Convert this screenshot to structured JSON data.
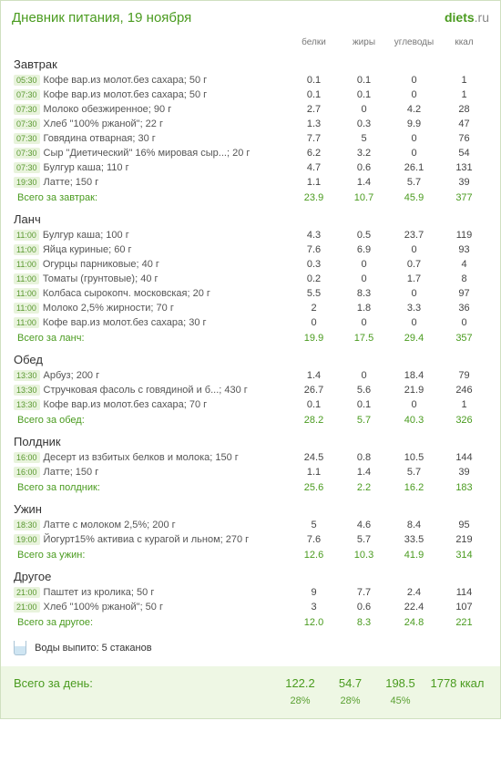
{
  "title": "Дневник питания, 19 ноября",
  "brand_main": "diets",
  "brand_suffix": ".ru",
  "columns": {
    "protein": "белки",
    "fat": "жиры",
    "carbs": "углеводы",
    "kcal": "ккал"
  },
  "meals": [
    {
      "name": "Завтрак",
      "items": [
        {
          "time": "05:30",
          "food": "Кофе вар.из молот.без сахара; 50 г",
          "p": "0.1",
          "f": "0.1",
          "c": "0",
          "k": "1"
        },
        {
          "time": "07:30",
          "food": "Кофе вар.из молот.без сахара; 50 г",
          "p": "0.1",
          "f": "0.1",
          "c": "0",
          "k": "1"
        },
        {
          "time": "07:30",
          "food": "Молоко обезжиренное; 90 г",
          "p": "2.7",
          "f": "0",
          "c": "4.2",
          "k": "28"
        },
        {
          "time": "07:30",
          "food": "Хлеб \"100% ржаной\"; 22 г",
          "p": "1.3",
          "f": "0.3",
          "c": "9.9",
          "k": "47"
        },
        {
          "time": "07:30",
          "food": "Говядина отварная; 30 г",
          "p": "7.7",
          "f": "5",
          "c": "0",
          "k": "76"
        },
        {
          "time": "07:30",
          "food": "Сыр \"Диетический\" 16% мировая сыр...; 20 г",
          "p": "6.2",
          "f": "3.2",
          "c": "0",
          "k": "54"
        },
        {
          "time": "07:30",
          "food": "Булгур каша; 110 г",
          "p": "4.7",
          "f": "0.6",
          "c": "26.1",
          "k": "131"
        },
        {
          "time": "19:30",
          "food": "Латте; 150 г",
          "p": "1.1",
          "f": "1.4",
          "c": "5.7",
          "k": "39"
        }
      ],
      "subtotal_label": "Всего за завтрак:",
      "subtotal": {
        "p": "23.9",
        "f": "10.7",
        "c": "45.9",
        "k": "377"
      }
    },
    {
      "name": "Ланч",
      "items": [
        {
          "time": "11:00",
          "food": "Булгур каша; 100 г",
          "p": "4.3",
          "f": "0.5",
          "c": "23.7",
          "k": "119"
        },
        {
          "time": "11:00",
          "food": "Яйца куриные; 60 г",
          "p": "7.6",
          "f": "6.9",
          "c": "0",
          "k": "93"
        },
        {
          "time": "11:00",
          "food": "Огурцы парниковые; 40 г",
          "p": "0.3",
          "f": "0",
          "c": "0.7",
          "k": "4"
        },
        {
          "time": "11:00",
          "food": "Томаты (грунтовые); 40 г",
          "p": "0.2",
          "f": "0",
          "c": "1.7",
          "k": "8"
        },
        {
          "time": "11:00",
          "food": "Колбаса сырокопч. московская; 20 г",
          "p": "5.5",
          "f": "8.3",
          "c": "0",
          "k": "97"
        },
        {
          "time": "11:00",
          "food": "Молоко 2,5% жирности; 70 г",
          "p": "2",
          "f": "1.8",
          "c": "3.3",
          "k": "36"
        },
        {
          "time": "11:00",
          "food": "Кофе вар.из молот.без сахара; 30 г",
          "p": "0",
          "f": "0",
          "c": "0",
          "k": "0"
        }
      ],
      "subtotal_label": "Всего за ланч:",
      "subtotal": {
        "p": "19.9",
        "f": "17.5",
        "c": "29.4",
        "k": "357"
      }
    },
    {
      "name": "Обед",
      "items": [
        {
          "time": "13:30",
          "food": "Арбуз; 200 г",
          "p": "1.4",
          "f": "0",
          "c": "18.4",
          "k": "79"
        },
        {
          "time": "13:30",
          "food": "Стручковая фасоль с говядиной и б...; 430 г",
          "p": "26.7",
          "f": "5.6",
          "c": "21.9",
          "k": "246"
        },
        {
          "time": "13:30",
          "food": "Кофе вар.из молот.без сахара; 70 г",
          "p": "0.1",
          "f": "0.1",
          "c": "0",
          "k": "1"
        }
      ],
      "subtotal_label": "Всего за обед:",
      "subtotal": {
        "p": "28.2",
        "f": "5.7",
        "c": "40.3",
        "k": "326"
      }
    },
    {
      "name": "Полдник",
      "items": [
        {
          "time": "16:00",
          "food": "Десерт из взбитых белков и молока; 150 г",
          "p": "24.5",
          "f": "0.8",
          "c": "10.5",
          "k": "144"
        },
        {
          "time": "16:00",
          "food": "Латте; 150 г",
          "p": "1.1",
          "f": "1.4",
          "c": "5.7",
          "k": "39"
        }
      ],
      "subtotal_label": "Всего за полдник:",
      "subtotal": {
        "p": "25.6",
        "f": "2.2",
        "c": "16.2",
        "k": "183"
      }
    },
    {
      "name": "Ужин",
      "items": [
        {
          "time": "18:30",
          "food": "Латте с молоком 2,5%; 200 г",
          "p": "5",
          "f": "4.6",
          "c": "8.4",
          "k": "95"
        },
        {
          "time": "19:00",
          "food": "Йогурт15% активиа с курагой и льном; 270 г",
          "p": "7.6",
          "f": "5.7",
          "c": "33.5",
          "k": "219"
        }
      ],
      "subtotal_label": "Всего за ужин:",
      "subtotal": {
        "p": "12.6",
        "f": "10.3",
        "c": "41.9",
        "k": "314"
      }
    },
    {
      "name": "Другое",
      "items": [
        {
          "time": "21:00",
          "food": "Паштет из кролика; 50 г",
          "p": "9",
          "f": "7.7",
          "c": "2.4",
          "k": "114"
        },
        {
          "time": "21:00",
          "food": "Хлеб \"100% ржаной\"; 50 г",
          "p": "3",
          "f": "0.6",
          "c": "22.4",
          "k": "107"
        }
      ],
      "subtotal_label": "Всего за другое:",
      "subtotal": {
        "p": "12.0",
        "f": "8.3",
        "c": "24.8",
        "k": "221"
      }
    }
  ],
  "water_label": "Воды выпито: 5 стаканов",
  "day_total_label": "Всего за день:",
  "day_total": {
    "p": "122.2",
    "f": "54.7",
    "c": "198.5",
    "k": "1778 ккал"
  },
  "day_pct": {
    "p": "28%",
    "f": "28%",
    "c": "45%"
  }
}
